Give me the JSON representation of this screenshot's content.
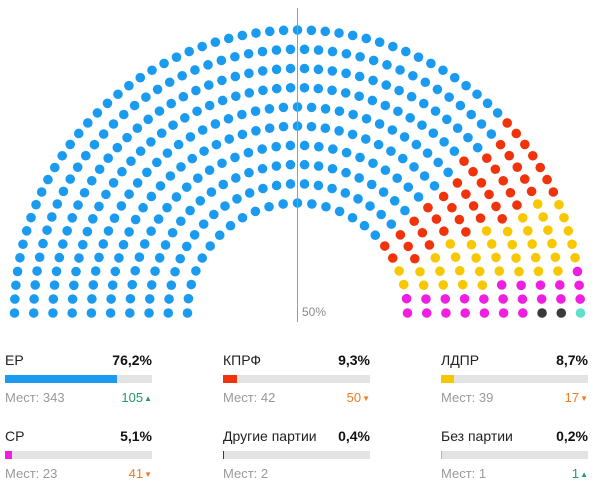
{
  "chart_data": {
    "type": "parliament",
    "total_seats": 450,
    "majority_label": "50%",
    "parties": [
      {
        "id": "er",
        "name": "ЕР",
        "percent": "76,2%",
        "share": 0.762,
        "seats": 343,
        "seats_label": "Мест: 343",
        "change": "105",
        "direction": "up",
        "color": "#1a9bf0"
      },
      {
        "id": "kprf",
        "name": "КПРФ",
        "percent": "9,3%",
        "share": 0.093,
        "seats": 42,
        "seats_label": "Мест: 42",
        "change": "50",
        "direction": "down",
        "color": "#f0330a"
      },
      {
        "id": "ldpr",
        "name": "ЛДПР",
        "percent": "8,7%",
        "share": 0.087,
        "seats": 39,
        "seats_label": "Мест: 39",
        "change": "17",
        "direction": "down",
        "color": "#f7c800"
      },
      {
        "id": "sr",
        "name": "СР",
        "percent": "5,1%",
        "share": 0.051,
        "seats": 23,
        "seats_label": "Мест: 23",
        "change": "41",
        "direction": "down",
        "color": "#f01ee0"
      },
      {
        "id": "other",
        "name": "Другие партии",
        "percent": "0,4%",
        "share": 0.004,
        "seats": 2,
        "seats_label": "Мест: 2",
        "change": "",
        "direction": "none",
        "color": "#3a3a3a"
      },
      {
        "id": "independent",
        "name": "Без партии",
        "percent": "0,2%",
        "share": 0.002,
        "seats": 1,
        "seats_label": "Мест: 1",
        "change": "1",
        "direction": "up",
        "color": "#5fe0c8"
      }
    ]
  },
  "arrows": {
    "up": "▲",
    "down": "▼"
  }
}
